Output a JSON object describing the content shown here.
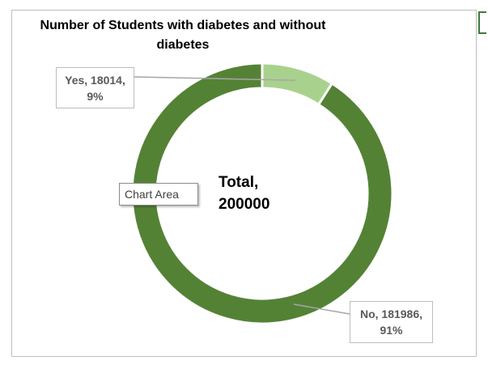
{
  "chart_data": {
    "type": "pie",
    "title": "Number of Students with diabetes and without diabetes",
    "center_label": "Total,\n200000",
    "slices": [
      {
        "label": "Yes",
        "value": 18014,
        "percent": "9%",
        "data_label": "Yes, 18014,\n9%",
        "color": "#a9d18e"
      },
      {
        "label": "No",
        "value": 181986,
        "percent": "91%",
        "data_label": "No, 181986,\n91%",
        "color": "#548235"
      }
    ],
    "hole": "donut"
  },
  "tooltip": {
    "text": "Chart Area"
  },
  "colors": {
    "leader_line": "#a6a6a6",
    "slice_border": "#ffffff"
  }
}
